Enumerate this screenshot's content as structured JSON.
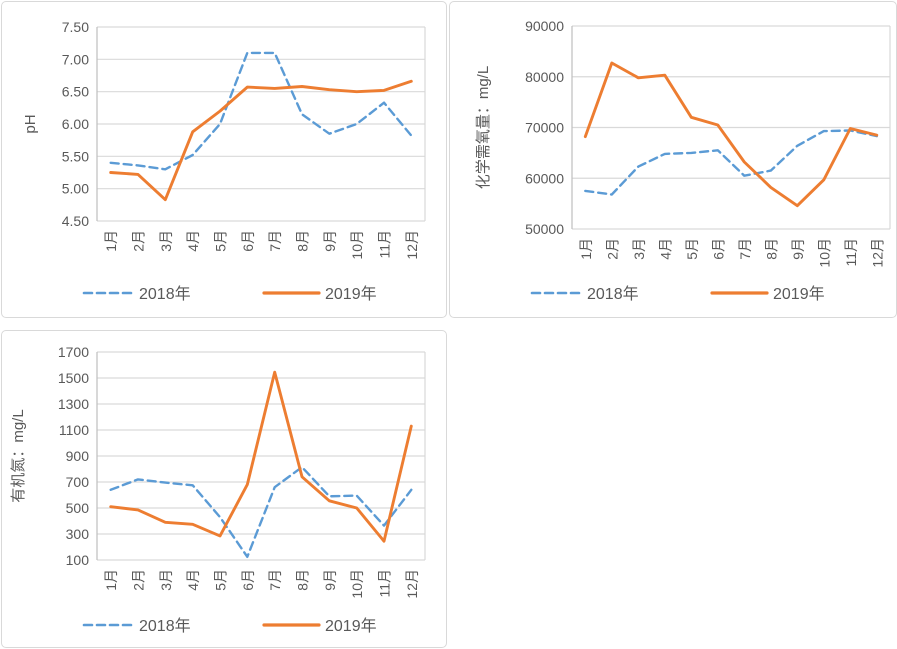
{
  "page": {
    "description": "Three line charts comparing monthly water quality indicators for 2018 and 2019",
    "background": "#ffffff"
  },
  "colors": {
    "series_2018": "#5B9BD5",
    "series_2019": "#ED7D31",
    "gridline": "#D9D9D9",
    "axis_line": "#BFBFBF",
    "text": "#595959",
    "chart_border": "#D9D9D9"
  },
  "legend": {
    "label_2018": "2018年",
    "label_2019": "2019年"
  },
  "chart_data": [
    {
      "type": "line",
      "title": "",
      "xlabel": "",
      "ylabel": "pH",
      "ylabel_unit": "",
      "ylabel_unit_serif": false,
      "ylim": [
        4.5,
        7.5
      ],
      "ystep": 0.5,
      "ytick_decimals": 2,
      "grid": true,
      "legend_position": "bottom",
      "categories": [
        "1月",
        "2月",
        "3月",
        "4月",
        "5月",
        "6月",
        "7月",
        "8月",
        "9月",
        "10月",
        "11月",
        "12月"
      ],
      "series": [
        {
          "name": "2018年",
          "style": "dashed",
          "color": "#5B9BD5",
          "values": [
            5.4,
            5.36,
            5.3,
            5.52,
            6.0,
            7.1,
            7.1,
            6.15,
            5.85,
            6.0,
            6.33,
            5.82
          ]
        },
        {
          "name": "2019年",
          "style": "solid",
          "color": "#ED7D31",
          "values": [
            5.25,
            5.22,
            4.83,
            5.88,
            6.2,
            6.57,
            6.55,
            6.58,
            6.53,
            6.5,
            6.52,
            6.66
          ]
        }
      ]
    },
    {
      "type": "line",
      "title": "",
      "xlabel": "",
      "ylabel": "化学需氧量：",
      "ylabel_unit": "mg/L",
      "ylabel_unit_serif": false,
      "ylim": [
        50000,
        90000
      ],
      "ystep": 10000,
      "ytick_decimals": 0,
      "grid": true,
      "legend_position": "bottom",
      "categories": [
        "1月",
        "2月",
        "3月",
        "4月",
        "5月",
        "6月",
        "7月",
        "8月",
        "9月",
        "10月",
        "11月",
        "12月"
      ],
      "series": [
        {
          "name": "2018年",
          "style": "dashed",
          "color": "#5B9BD5",
          "values": [
            57500,
            56800,
            62300,
            64800,
            65000,
            65500,
            60500,
            61500,
            66400,
            69300,
            69400,
            68300
          ]
        },
        {
          "name": "2019年",
          "style": "solid",
          "color": "#ED7D31",
          "values": [
            68200,
            82700,
            79800,
            80300,
            72000,
            70500,
            63200,
            58200,
            54600,
            59700,
            69800,
            68500
          ]
        }
      ]
    },
    {
      "type": "line",
      "title": "",
      "xlabel": "",
      "ylabel": "有机氮：",
      "ylabel_unit": "mg/L",
      "ylabel_unit_serif": true,
      "ylim": [
        100,
        1700
      ],
      "ystep": 200,
      "ytick_decimals": 0,
      "grid": true,
      "legend_position": "bottom",
      "categories": [
        "1月",
        "2月",
        "3月",
        "4月",
        "5月",
        "6月",
        "7月",
        "8月",
        "9月",
        "10月",
        "11月",
        "12月"
      ],
      "series": [
        {
          "name": "2018年",
          "style": "dashed",
          "color": "#5B9BD5",
          "values": [
            640,
            720,
            695,
            675,
            430,
            125,
            660,
            815,
            590,
            595,
            365,
            640
          ]
        },
        {
          "name": "2019年",
          "style": "solid",
          "color": "#ED7D31",
          "values": [
            510,
            485,
            390,
            375,
            285,
            680,
            1545,
            740,
            555,
            500,
            245,
            1130
          ]
        }
      ]
    }
  ]
}
